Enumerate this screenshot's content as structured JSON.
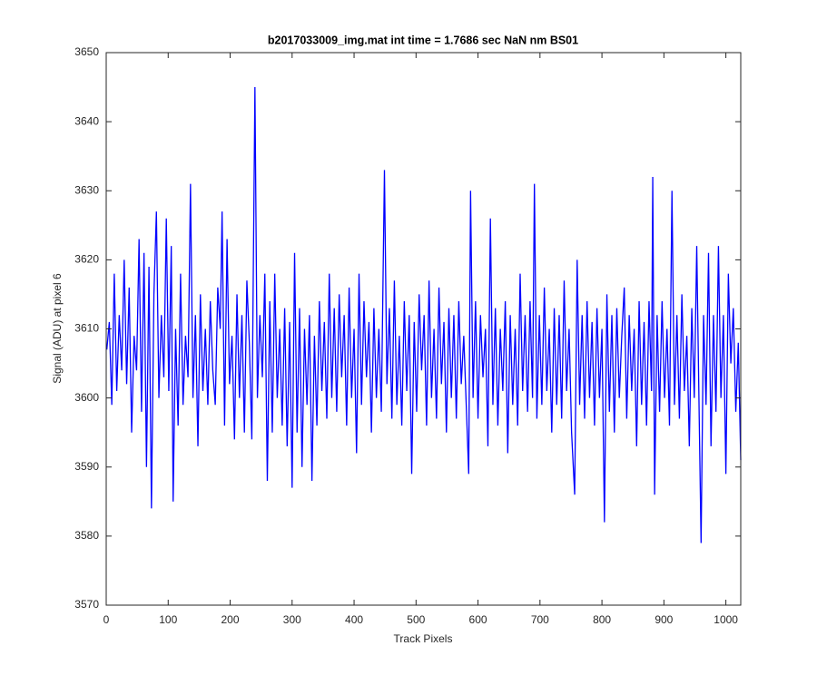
{
  "chart_data": {
    "type": "line",
    "title": "b2017033009_img.mat int time = 1.7686 sec  NaN nm BS01",
    "x_label": "Track Pixels",
    "y_label": "Signal (ADU) at pixel 6",
    "color": "#0000ff",
    "xlim": [
      0,
      1024
    ],
    "ylim": [
      3570,
      3650
    ],
    "xticks": [
      0,
      100,
      200,
      300,
      400,
      500,
      600,
      700,
      800,
      900,
      1000
    ],
    "yticks": [
      3570,
      3580,
      3590,
      3600,
      3610,
      3620,
      3630,
      3640,
      3650
    ],
    "x": [
      1,
      5,
      9,
      13,
      17,
      21,
      25,
      29,
      33,
      37,
      41,
      45,
      49,
      53,
      57,
      61,
      65,
      69,
      73,
      77,
      81,
      85,
      89,
      93,
      97,
      101,
      105,
      108,
      112,
      116,
      120,
      124,
      128,
      132,
      136,
      140,
      144,
      148,
      152,
      156,
      160,
      164,
      168,
      172,
      176,
      180,
      184,
      187,
      191,
      195,
      199,
      203,
      207,
      211,
      215,
      219,
      223,
      227,
      231,
      235,
      240,
      244,
      248,
      252,
      256,
      260,
      264,
      268,
      272,
      276,
      280,
      284,
      288,
      292,
      296,
      300,
      304,
      308,
      312,
      316,
      320,
      324,
      328,
      332,
      336,
      340,
      344,
      348,
      352,
      356,
      360,
      364,
      368,
      372,
      376,
      380,
      384,
      388,
      392,
      396,
      400,
      404,
      408,
      412,
      416,
      420,
      424,
      428,
      432,
      436,
      440,
      444,
      449,
      453,
      457,
      461,
      465,
      469,
      473,
      477,
      481,
      485,
      489,
      493,
      497,
      501,
      505,
      509,
      513,
      517,
      521,
      525,
      529,
      533,
      537,
      541,
      545,
      549,
      553,
      557,
      561,
      565,
      569,
      573,
      577,
      581,
      585,
      588,
      592,
      596,
      600,
      604,
      608,
      612,
      616,
      620,
      624,
      628,
      632,
      636,
      640,
      644,
      648,
      652,
      656,
      660,
      664,
      668,
      672,
      676,
      680,
      684,
      688,
      691,
      695,
      699,
      703,
      707,
      711,
      715,
      719,
      723,
      727,
      731,
      735,
      739,
      743,
      747,
      751,
      756,
      760,
      764,
      768,
      772,
      776,
      780,
      784,
      788,
      792,
      796,
      800,
      804,
      808,
      812,
      816,
      820,
      824,
      828,
      832,
      836,
      840,
      844,
      848,
      852,
      856,
      860,
      864,
      868,
      872,
      876,
      880,
      882,
      885,
      889,
      893,
      897,
      901,
      905,
      909,
      913,
      917,
      921,
      925,
      929,
      933,
      937,
      941,
      945,
      949,
      953,
      957,
      960,
      964,
      968,
      972,
      976,
      980,
      984,
      988,
      992,
      996,
      1000,
      1004,
      1008,
      1012,
      1016,
      1020,
      1024
    ],
    "values": [
      3607,
      3611,
      3599,
      3618,
      3601,
      3612,
      3604,
      3620,
      3602,
      3616,
      3595,
      3609,
      3604,
      3623,
      3598,
      3621,
      3590,
      3619,
      3584,
      3615,
      3627,
      3600,
      3612,
      3603,
      3626,
      3601,
      3622,
      3585,
      3610,
      3596,
      3618,
      3599,
      3609,
      3603,
      3631,
      3600,
      3612,
      3593,
      3615,
      3601,
      3610,
      3599,
      3614,
      3604,
      3599,
      3616,
      3610,
      3627,
      3596,
      3623,
      3602,
      3609,
      3594,
      3615,
      3600,
      3612,
      3595,
      3617,
      3608,
      3594,
      3645,
      3600,
      3612,
      3603,
      3618,
      3588,
      3614,
      3595,
      3618,
      3600,
      3610,
      3596,
      3613,
      3593,
      3611,
      3587,
      3621,
      3595,
      3613,
      3590,
      3610,
      3599,
      3612,
      3588,
      3609,
      3596,
      3614,
      3601,
      3611,
      3597,
      3618,
      3600,
      3613,
      3598,
      3615,
      3603,
      3612,
      3596,
      3616,
      3600,
      3610,
      3592,
      3618,
      3599,
      3614,
      3603,
      3611,
      3595,
      3613,
      3600,
      3610,
      3598,
      3633,
      3602,
      3613,
      3597,
      3617,
      3599,
      3609,
      3596,
      3614,
      3601,
      3612,
      3589,
      3611,
      3598,
      3615,
      3604,
      3612,
      3596,
      3617,
      3600,
      3610,
      3597,
      3616,
      3602,
      3611,
      3595,
      3613,
      3600,
      3612,
      3597,
      3614,
      3602,
      3609,
      3599,
      3589,
      3630,
      3600,
      3614,
      3597,
      3612,
      3603,
      3610,
      3593,
      3626,
      3599,
      3613,
      3596,
      3610,
      3601,
      3614,
      3592,
      3612,
      3599,
      3610,
      3596,
      3618,
      3601,
      3612,
      3598,
      3614,
      3600,
      3631,
      3597,
      3612,
      3599,
      3616,
      3601,
      3610,
      3595,
      3613,
      3599,
      3612,
      3597,
      3617,
      3601,
      3610,
      3595,
      3586,
      3620,
      3599,
      3612,
      3597,
      3614,
      3600,
      3611,
      3596,
      3613,
      3600,
      3610,
      3582,
      3615,
      3598,
      3612,
      3595,
      3613,
      3600,
      3609,
      3616,
      3597,
      3612,
      3601,
      3610,
      3593,
      3614,
      3599,
      3611,
      3596,
      3614,
      3601,
      3632,
      3586,
      3612,
      3598,
      3614,
      3600,
      3610,
      3596,
      3630,
      3599,
      3612,
      3597,
      3615,
      3601,
      3609,
      3593,
      3613,
      3600,
      3622,
      3597,
      3579,
      3612,
      3599,
      3621,
      3593,
      3612,
      3598,
      3622,
      3600,
      3612,
      3589,
      3618,
      3605,
      3613,
      3598,
      3608,
      3591
    ]
  }
}
